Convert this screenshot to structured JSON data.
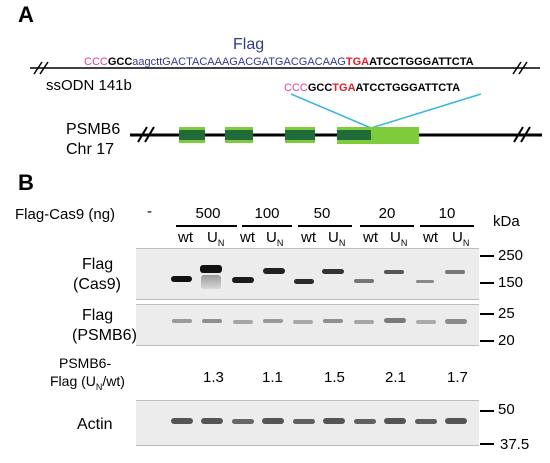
{
  "panel_a": {
    "label": "A",
    "flag_label": "Flag",
    "ssodn_label": "ssODN 141b",
    "sequence": {
      "part1": "CCC",
      "part2": "GCC",
      "part3": "aagctt",
      "part4": "GACTACAAAGACGATGACGACAAG",
      "part5": "TGA",
      "part6": "ATCCTGGGATTCTA"
    },
    "zoom_sequence": {
      "part1": "CCC",
      "part2": "GCC",
      "part3": "TGA",
      "part4": "ATCCTGGGATTCTA"
    },
    "gene_label_1": "PSMB6",
    "gene_label_2": "Chr 17"
  },
  "panel_b": {
    "label": "B",
    "title": "Flag-Cas9 (ng)",
    "dash": "-",
    "kda_label": "kDa",
    "groups": [
      "500",
      "100",
      "50",
      "20",
      "10"
    ],
    "lane_wt": "wt",
    "lane_un": "U",
    "lane_un_sub": "N",
    "row_labels": {
      "cas9_a": "Flag",
      "cas9_b": "(Cas9)",
      "psmb6_a": "Flag",
      "psmb6_b": "(PSMB6)",
      "ratio_a": "PSMB6-",
      "ratio_b": "Flag (U",
      "ratio_b_sub": "N",
      "ratio_b_end": "/wt)",
      "actin": "Actin"
    },
    "ratios": [
      "1.3",
      "1.1",
      "1.5",
      "2.1",
      "1.7"
    ],
    "markers": {
      "cas9": [
        "250",
        "150"
      ],
      "psmb6": [
        "25",
        "20"
      ],
      "actin": [
        "50",
        "37.5"
      ]
    }
  },
  "colors": {
    "pink": "#e0409a",
    "red": "#e0202a",
    "blue": "#2e3a8c",
    "cyan": "#3bb6e0",
    "exon_dark": "#1f6b3a",
    "exon_light": "#7ecb3c"
  }
}
